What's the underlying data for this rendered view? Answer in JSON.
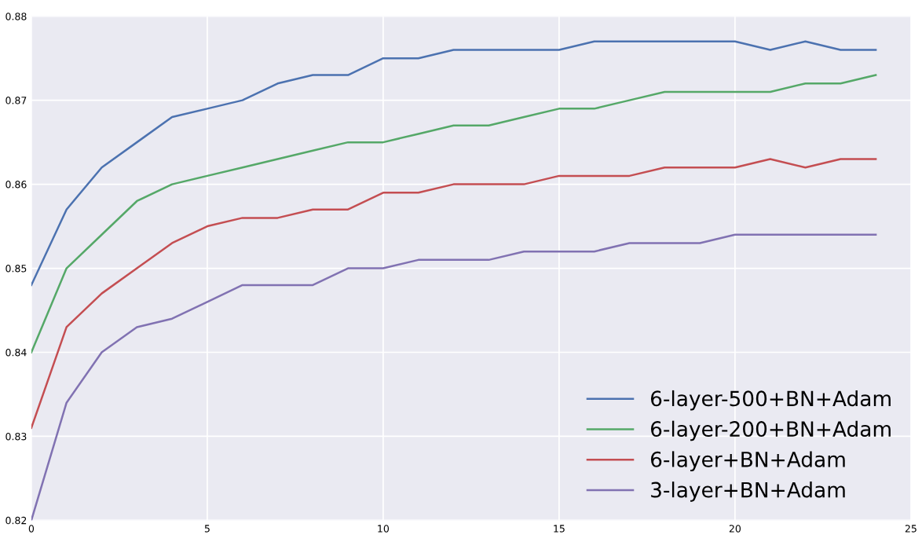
{
  "chart_data": {
    "type": "line",
    "x": [
      0,
      1,
      2,
      3,
      4,
      5,
      6,
      7,
      8,
      9,
      10,
      11,
      12,
      13,
      14,
      15,
      16,
      17,
      18,
      19,
      20,
      21,
      22,
      23,
      24
    ],
    "series": [
      {
        "name": "6-layer-500+BN+Adam",
        "color": "#4c72b0",
        "values": [
          0.848,
          0.857,
          0.862,
          0.865,
          0.868,
          0.869,
          0.87,
          0.872,
          0.873,
          0.873,
          0.875,
          0.875,
          0.876,
          0.876,
          0.876,
          0.876,
          0.877,
          0.877,
          0.877,
          0.877,
          0.877,
          0.876,
          0.877,
          0.876,
          0.876
        ]
      },
      {
        "name": "6-layer-200+BN+Adam",
        "color": "#55a868",
        "values": [
          0.84,
          0.85,
          0.854,
          0.858,
          0.86,
          0.861,
          0.862,
          0.863,
          0.864,
          0.865,
          0.865,
          0.866,
          0.867,
          0.867,
          0.868,
          0.869,
          0.869,
          0.87,
          0.871,
          0.871,
          0.871,
          0.871,
          0.872,
          0.872,
          0.873
        ]
      },
      {
        "name": "6-layer+BN+Adam",
        "color": "#c44e52",
        "values": [
          0.831,
          0.843,
          0.847,
          0.85,
          0.853,
          0.855,
          0.856,
          0.856,
          0.857,
          0.857,
          0.859,
          0.859,
          0.86,
          0.86,
          0.86,
          0.861,
          0.861,
          0.861,
          0.862,
          0.862,
          0.862,
          0.863,
          0.862,
          0.863,
          0.863
        ]
      },
      {
        "name": "3-layer+BN+Adam",
        "color": "#8172b2",
        "values": [
          0.82,
          0.834,
          0.84,
          0.843,
          0.844,
          0.846,
          0.848,
          0.848,
          0.848,
          0.85,
          0.85,
          0.851,
          0.851,
          0.851,
          0.852,
          0.852,
          0.852,
          0.853,
          0.853,
          0.853,
          0.854,
          0.854,
          0.854,
          0.854,
          0.854
        ]
      }
    ],
    "xlim": [
      0,
      25
    ],
    "xticks": [
      0,
      5,
      10,
      15,
      20,
      25
    ],
    "ylim": [
      0.82,
      0.88
    ],
    "yticks": [
      {
        "value": 0.82,
        "label": "0.82"
      },
      {
        "value": 0.83,
        "label": "0.83"
      },
      {
        "value": 0.84,
        "label": "0.84"
      },
      {
        "value": 0.85,
        "label": "0.85"
      },
      {
        "value": 0.86,
        "label": "0.86"
      },
      {
        "value": 0.87,
        "label": "0.87"
      },
      {
        "value": 0.88,
        "label": "0.88"
      }
    ],
    "grid": true,
    "legend": "lower right",
    "marker": "none",
    "line_style": "solid"
  }
}
